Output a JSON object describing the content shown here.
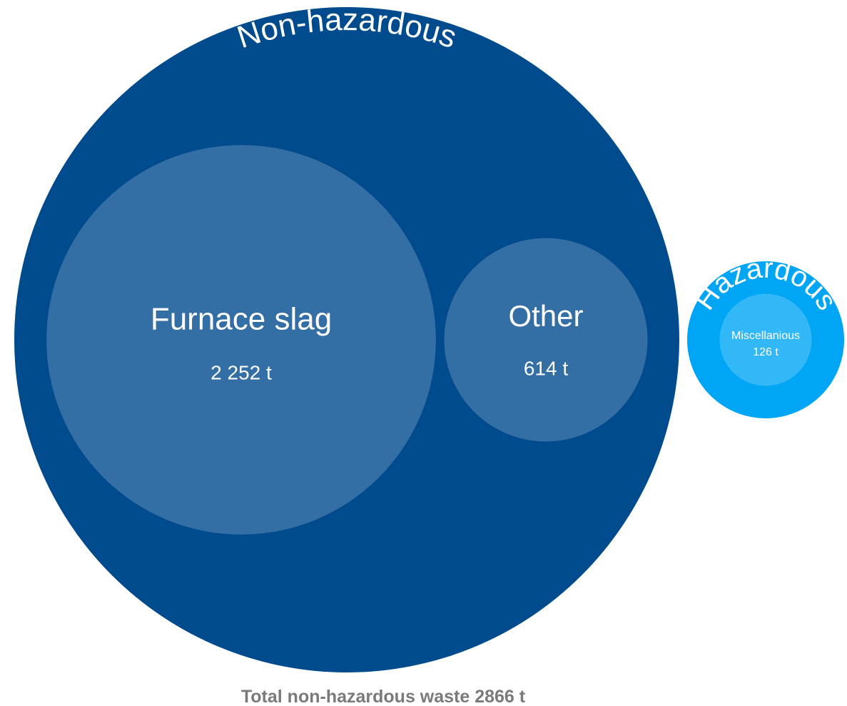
{
  "chart_data": {
    "type": "packed-bubble",
    "footer": "Total non-hazardous waste 2866 t",
    "groups": [
      {
        "name": "Non-hazardous",
        "color": "#004b8d",
        "children": [
          {
            "name": "Furnace slag",
            "value": 2252,
            "value_label": "2 252 t",
            "color": "#336ea4"
          },
          {
            "name": "Other",
            "value": 614,
            "value_label": "614 t",
            "color": "#336ea4"
          }
        ]
      },
      {
        "name": "Hazardous",
        "color": "#00a6f5",
        "children": [
          {
            "name": "Miscellanious",
            "value": 126,
            "value_label": "126 t",
            "color": "#33b8f7"
          }
        ]
      }
    ]
  }
}
